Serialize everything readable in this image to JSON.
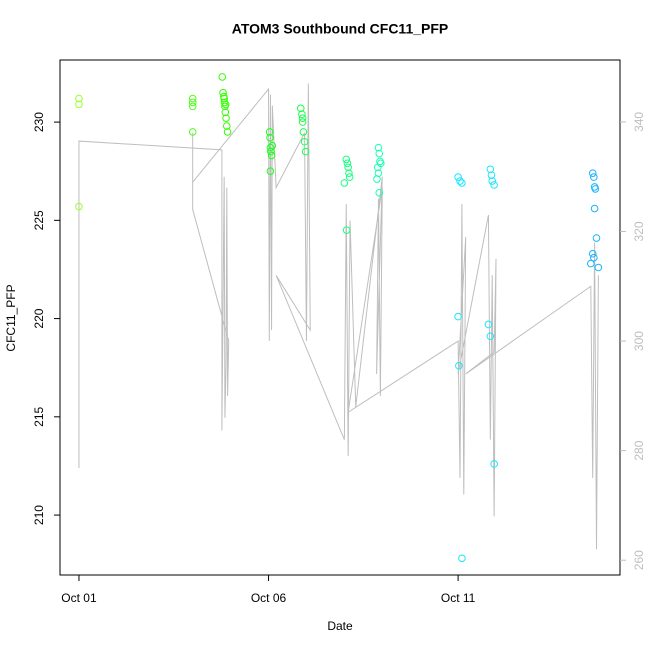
{
  "chart_data": {
    "type": "scatter",
    "title": "ATOM3 Southbound CFC11_PFP",
    "x_label": "Date",
    "y_label": "CFC11_PFP",
    "xlim": [
      0.5,
      15.27
    ],
    "xticks": [
      {
        "value": 1,
        "label": "Oct 01"
      },
      {
        "value": 6,
        "label": "Oct 06"
      },
      {
        "value": 11,
        "label": "Oct 11"
      }
    ],
    "ylim": [
      206.95,
      233.16
    ],
    "yticks": [
      210,
      215,
      220,
      225,
      230
    ],
    "y2lim": [
      257.3,
      351.3
    ],
    "y2ticks": [
      260,
      280,
      300,
      320,
      340
    ],
    "series": [
      {
        "color": "#99ff33",
        "x": [
          1.0,
          1.0,
          1.0
        ],
        "values": [
          231.2,
          230.9,
          225.7
        ]
      },
      {
        "color": "#4dff1a",
        "x": [
          4.0,
          4.0,
          4.0,
          4.0
        ],
        "values": [
          231.0,
          231.2,
          230.8,
          229.5
        ]
      },
      {
        "color": "#33ff00",
        "x": [
          4.78,
          4.8,
          4.82,
          4.84,
          4.85,
          4.86,
          4.88,
          4.9,
          4.92,
          4.83,
          4.87
        ],
        "values": [
          232.3,
          231.5,
          231.3,
          231.0,
          230.8,
          230.5,
          230.2,
          229.8,
          229.5,
          231.2,
          230.9
        ]
      },
      {
        "color": "#1aff1a",
        "x": [
          6.03,
          6.04,
          6.05,
          6.06,
          6.08,
          6.05,
          6.1
        ],
        "values": [
          229.5,
          229.2,
          228.7,
          228.5,
          228.3,
          227.5,
          228.8
        ]
      },
      {
        "color": "#1aff4d",
        "x": [
          6.85,
          6.88,
          6.9,
          6.92,
          6.95,
          6.98,
          6.9
        ],
        "values": [
          230.7,
          230.4,
          230.0,
          229.5,
          229.0,
          228.5,
          230.2
        ]
      },
      {
        "color": "#1aff80",
        "x": [
          8.05,
          8.08,
          8.1,
          8.12,
          8.14,
          8.0,
          8.06
        ],
        "values": [
          228.1,
          227.9,
          227.7,
          227.4,
          227.2,
          226.9,
          224.5
        ]
      },
      {
        "color": "#1affb3",
        "x": [
          8.9,
          8.92,
          8.94,
          8.88,
          8.9,
          8.86,
          8.92,
          8.96
        ],
        "values": [
          228.7,
          228.4,
          228.0,
          227.7,
          227.4,
          227.1,
          226.4,
          227.9
        ]
      },
      {
        "color": "#1ae6ff",
        "x": [
          11.0,
          11.05,
          11.1,
          11.0,
          11.02,
          11.1
        ],
        "values": [
          227.2,
          227.0,
          226.9,
          220.1,
          217.6,
          207.8
        ]
      },
      {
        "color": "#1ae6ff",
        "x": [
          11.85,
          11.88,
          11.9,
          11.95,
          11.8,
          11.85,
          11.95
        ],
        "values": [
          227.6,
          227.3,
          227.0,
          226.8,
          219.7,
          219.1,
          212.6
        ]
      },
      {
        "color": "#1ab3ff",
        "x": [
          14.55,
          14.58,
          14.6,
          14.62,
          14.6,
          14.65,
          14.55,
          14.58,
          14.7,
          14.5
        ],
        "values": [
          227.4,
          227.2,
          226.7,
          226.6,
          225.6,
          224.1,
          223.3,
          223.1,
          222.6,
          222.8
        ]
      },
      {
        "color": "#bebebe",
        "axis": "y2",
        "x": [
          1.0,
          1.0,
          4.77,
          4.77,
          4.83,
          4.85,
          4.88,
          4.9,
          4.92,
          4.95,
          4.0,
          4.0,
          4.0,
          6.0,
          6.02,
          6.05,
          6.08,
          6.1,
          6.2,
          6.95,
          7.0,
          7.05,
          7.1,
          6.2,
          8.0,
          8.05,
          8.1,
          8.15,
          8.3,
          9.0,
          8.85,
          8.9,
          8.95,
          9.0,
          8.1,
          11.0,
          11.05,
          11.1,
          11.15,
          11.2,
          11.0,
          11.8,
          11.85,
          11.9,
          11.95,
          12.0,
          11.95,
          11.2,
          14.5,
          14.55,
          14.6,
          14.65,
          14.7
        ],
        "values": [
          276.8,
          336.5,
          334.9,
          283.7,
          330,
          286,
          296,
          328,
          290,
          300,
          324,
          338,
          329,
          346,
          300,
          345,
          302,
          343,
          328,
          338,
          300,
          347,
          302,
          312,
          282,
          325,
          279,
          322,
          288,
          330,
          294,
          326,
          290,
          328,
          287,
          300,
          275,
          325,
          272,
          319,
          294,
          323,
          282,
          312,
          268,
          315,
          298,
          294,
          310,
          275,
          318,
          262,
          312
        ]
      }
    ]
  }
}
